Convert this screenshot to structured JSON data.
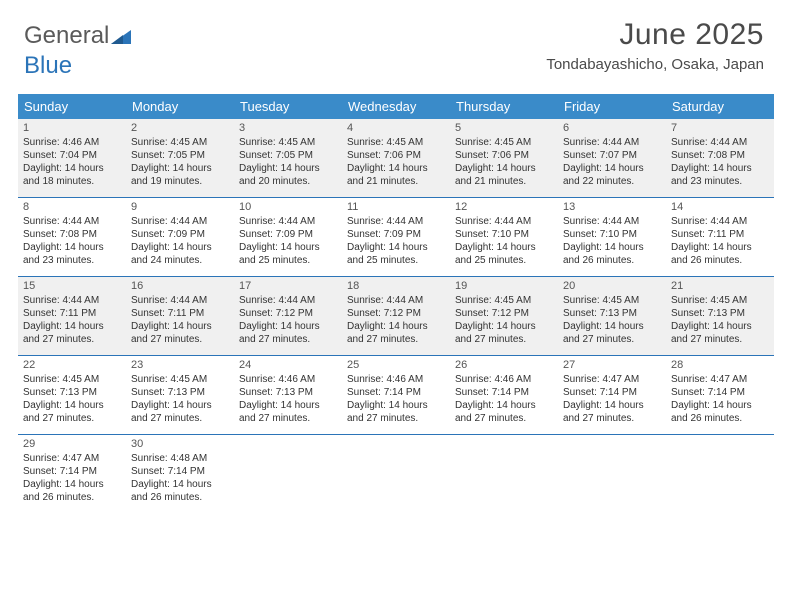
{
  "logo": {
    "part1": "General",
    "part2": "Blue"
  },
  "title": {
    "month": "June 2025",
    "location": "Tondabayashicho, Osaka, Japan"
  },
  "colors": {
    "header_bg": "#3a8bc9",
    "header_fg": "#ffffff",
    "rule": "#2b74b8",
    "shade": "#f0f0f0",
    "logo_gray": "#5a5a5a",
    "logo_blue": "#2b74b8"
  },
  "daynames": [
    "Sunday",
    "Monday",
    "Tuesday",
    "Wednesday",
    "Thursday",
    "Friday",
    "Saturday"
  ],
  "weeks": [
    [
      {
        "n": "1",
        "sr": "4:46 AM",
        "ss": "7:04 PM",
        "dh": "14",
        "dm": "18",
        "shade": true
      },
      {
        "n": "2",
        "sr": "4:45 AM",
        "ss": "7:05 PM",
        "dh": "14",
        "dm": "19",
        "shade": true
      },
      {
        "n": "3",
        "sr": "4:45 AM",
        "ss": "7:05 PM",
        "dh": "14",
        "dm": "20",
        "shade": true
      },
      {
        "n": "4",
        "sr": "4:45 AM",
        "ss": "7:06 PM",
        "dh": "14",
        "dm": "21",
        "shade": true
      },
      {
        "n": "5",
        "sr": "4:45 AM",
        "ss": "7:06 PM",
        "dh": "14",
        "dm": "21",
        "shade": true
      },
      {
        "n": "6",
        "sr": "4:44 AM",
        "ss": "7:07 PM",
        "dh": "14",
        "dm": "22",
        "shade": true
      },
      {
        "n": "7",
        "sr": "4:44 AM",
        "ss": "7:08 PM",
        "dh": "14",
        "dm": "23",
        "shade": true
      }
    ],
    [
      {
        "n": "8",
        "sr": "4:44 AM",
        "ss": "7:08 PM",
        "dh": "14",
        "dm": "23"
      },
      {
        "n": "9",
        "sr": "4:44 AM",
        "ss": "7:09 PM",
        "dh": "14",
        "dm": "24"
      },
      {
        "n": "10",
        "sr": "4:44 AM",
        "ss": "7:09 PM",
        "dh": "14",
        "dm": "25"
      },
      {
        "n": "11",
        "sr": "4:44 AM",
        "ss": "7:09 PM",
        "dh": "14",
        "dm": "25"
      },
      {
        "n": "12",
        "sr": "4:44 AM",
        "ss": "7:10 PM",
        "dh": "14",
        "dm": "25"
      },
      {
        "n": "13",
        "sr": "4:44 AM",
        "ss": "7:10 PM",
        "dh": "14",
        "dm": "26"
      },
      {
        "n": "14",
        "sr": "4:44 AM",
        "ss": "7:11 PM",
        "dh": "14",
        "dm": "26"
      }
    ],
    [
      {
        "n": "15",
        "sr": "4:44 AM",
        "ss": "7:11 PM",
        "dh": "14",
        "dm": "27",
        "shade": true
      },
      {
        "n": "16",
        "sr": "4:44 AM",
        "ss": "7:11 PM",
        "dh": "14",
        "dm": "27",
        "shade": true
      },
      {
        "n": "17",
        "sr": "4:44 AM",
        "ss": "7:12 PM",
        "dh": "14",
        "dm": "27",
        "shade": true
      },
      {
        "n": "18",
        "sr": "4:44 AM",
        "ss": "7:12 PM",
        "dh": "14",
        "dm": "27",
        "shade": true
      },
      {
        "n": "19",
        "sr": "4:45 AM",
        "ss": "7:12 PM",
        "dh": "14",
        "dm": "27",
        "shade": true
      },
      {
        "n": "20",
        "sr": "4:45 AM",
        "ss": "7:13 PM",
        "dh": "14",
        "dm": "27",
        "shade": true
      },
      {
        "n": "21",
        "sr": "4:45 AM",
        "ss": "7:13 PM",
        "dh": "14",
        "dm": "27",
        "shade": true
      }
    ],
    [
      {
        "n": "22",
        "sr": "4:45 AM",
        "ss": "7:13 PM",
        "dh": "14",
        "dm": "27"
      },
      {
        "n": "23",
        "sr": "4:45 AM",
        "ss": "7:13 PM",
        "dh": "14",
        "dm": "27"
      },
      {
        "n": "24",
        "sr": "4:46 AM",
        "ss": "7:13 PM",
        "dh": "14",
        "dm": "27"
      },
      {
        "n": "25",
        "sr": "4:46 AM",
        "ss": "7:14 PM",
        "dh": "14",
        "dm": "27"
      },
      {
        "n": "26",
        "sr": "4:46 AM",
        "ss": "7:14 PM",
        "dh": "14",
        "dm": "27"
      },
      {
        "n": "27",
        "sr": "4:47 AM",
        "ss": "7:14 PM",
        "dh": "14",
        "dm": "27"
      },
      {
        "n": "28",
        "sr": "4:47 AM",
        "ss": "7:14 PM",
        "dh": "14",
        "dm": "26"
      }
    ],
    [
      {
        "n": "29",
        "sr": "4:47 AM",
        "ss": "7:14 PM",
        "dh": "14",
        "dm": "26"
      },
      {
        "n": "30",
        "sr": "4:48 AM",
        "ss": "7:14 PM",
        "dh": "14",
        "dm": "26"
      },
      null,
      null,
      null,
      null,
      null
    ]
  ],
  "labels": {
    "sunrise": "Sunrise:",
    "sunset": "Sunset:",
    "daylight": "Daylight:",
    "hours": "hours",
    "and": "and",
    "minutes": "minutes."
  }
}
